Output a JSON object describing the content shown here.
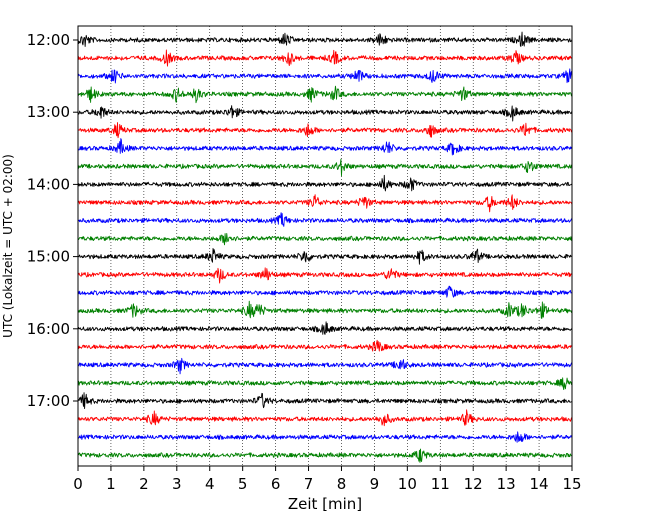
{
  "chart_data": {
    "type": "line",
    "title": "",
    "xlabel": "Zeit  [min]",
    "ylabel": "UTC (Lokalzeit = UTC + 02:00)",
    "xlim": [
      0,
      15
    ],
    "x_ticks": [
      "0",
      "1",
      "2",
      "3",
      "4",
      "5",
      "6",
      "7",
      "8",
      "9",
      "10",
      "11",
      "12",
      "13",
      "14",
      "15"
    ],
    "y_ticks": [
      "12:00",
      "13:00",
      "14:00",
      "15:00",
      "16:00",
      "17:00"
    ],
    "grid": "vertical dotted lines at every minute",
    "trace_interval_minutes": 15,
    "colors": [
      "#000000",
      "#ff0000",
      "#0000ff",
      "#008000"
    ],
    "series": [
      {
        "start": "12:00",
        "color": "#000000",
        "bursts": [
          0.2,
          6.3,
          9.2,
          13.5
        ]
      },
      {
        "start": "12:15",
        "color": "#ff0000",
        "bursts": [
          2.7,
          6.4,
          7.8,
          13.3
        ]
      },
      {
        "start": "12:30",
        "color": "#0000ff",
        "bursts": [
          1.1,
          8.5,
          10.8,
          14.9
        ]
      },
      {
        "start": "12:45",
        "color": "#008000",
        "bursts": [
          0.4,
          3.0,
          3.6,
          7.1,
          7.8,
          11.7
        ]
      },
      {
        "start": "13:00",
        "color": "#000000",
        "bursts": [
          0.7,
          4.7,
          13.2
        ]
      },
      {
        "start": "13:15",
        "color": "#ff0000",
        "bursts": [
          1.2,
          7.0,
          10.7,
          13.6
        ]
      },
      {
        "start": "13:30",
        "color": "#0000ff",
        "bursts": [
          1.3,
          9.4,
          11.4
        ]
      },
      {
        "start": "13:45",
        "color": "#008000",
        "bursts": [
          8.0,
          13.7
        ]
      },
      {
        "start": "14:00",
        "color": "#000000",
        "bursts": [
          9.3,
          10.1
        ]
      },
      {
        "start": "14:15",
        "color": "#ff0000",
        "bursts": [
          7.2,
          8.7,
          12.5,
          13.2
        ]
      },
      {
        "start": "14:30",
        "color": "#0000ff",
        "bursts": [
          6.2
        ]
      },
      {
        "start": "14:45",
        "color": "#008000",
        "bursts": [
          4.5
        ]
      },
      {
        "start": "15:00",
        "color": "#000000",
        "bursts": [
          4.1,
          6.9,
          10.4,
          12.1
        ]
      },
      {
        "start": "15:15",
        "color": "#ff0000",
        "bursts": [
          4.3,
          5.7,
          9.5
        ]
      },
      {
        "start": "15:30",
        "color": "#0000ff",
        "bursts": [
          11.3
        ]
      },
      {
        "start": "15:45",
        "color": "#008000",
        "bursts": [
          1.7,
          5.2,
          5.5,
          13.1,
          13.5,
          14.1
        ]
      },
      {
        "start": "16:00",
        "color": "#000000",
        "bursts": [
          7.5
        ]
      },
      {
        "start": "16:15",
        "color": "#ff0000",
        "bursts": [
          9.1
        ]
      },
      {
        "start": "16:30",
        "color": "#0000ff",
        "bursts": [
          3.1,
          9.8
        ]
      },
      {
        "start": "16:45",
        "color": "#008000",
        "bursts": [
          14.8
        ]
      },
      {
        "start": "17:00",
        "color": "#000000",
        "bursts": [
          0.2,
          5.6
        ]
      },
      {
        "start": "17:15",
        "color": "#ff0000",
        "bursts": [
          2.3,
          9.3,
          11.8
        ]
      },
      {
        "start": "17:30",
        "color": "#0000ff",
        "bursts": [
          13.4
        ]
      },
      {
        "start": "17:45",
        "color": "#008000",
        "bursts": [
          10.4
        ]
      }
    ]
  }
}
